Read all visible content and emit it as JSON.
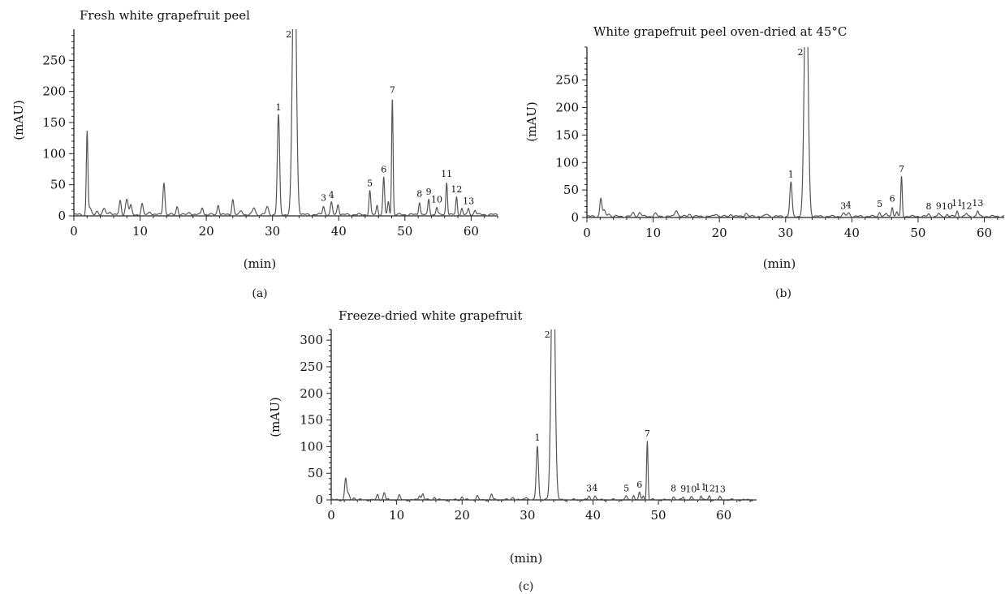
{
  "figure": {
    "panels": [
      {
        "panel_label": "(a)",
        "chart_data": {
          "type": "line",
          "title": "Fresh white grapefruit peel",
          "xlabel": "(min)",
          "ylabel": "(mAU)",
          "xlim": [
            0,
            64
          ],
          "ylim": [
            0,
            300
          ],
          "xticks": [
            0,
            10,
            20,
            30,
            40,
            50,
            60
          ],
          "yticks": [
            0,
            50,
            100,
            150,
            200,
            250
          ],
          "grid": false,
          "baseline": 2,
          "peaks": [
            {
              "x": 2.0,
              "y": 133,
              "w": 0.12,
              "label": ""
            },
            {
              "x": 2.4,
              "y": 10,
              "w": 0.2,
              "label": ""
            },
            {
              "x": 3.5,
              "y": 6,
              "w": 0.2,
              "label": ""
            },
            {
              "x": 4.6,
              "y": 9,
              "w": 0.2,
              "label": ""
            },
            {
              "x": 5.5,
              "y": 5,
              "w": 0.2,
              "label": ""
            },
            {
              "x": 7.0,
              "y": 22,
              "w": 0.15,
              "label": ""
            },
            {
              "x": 8.0,
              "y": 25,
              "w": 0.2,
              "label": ""
            },
            {
              "x": 8.6,
              "y": 14,
              "w": 0.15,
              "label": ""
            },
            {
              "x": 10.3,
              "y": 17,
              "w": 0.15,
              "label": ""
            },
            {
              "x": 11.5,
              "y": 5,
              "w": 0.2,
              "label": ""
            },
            {
              "x": 13.6,
              "y": 52,
              "w": 0.15,
              "label": ""
            },
            {
              "x": 15.6,
              "y": 13,
              "w": 0.15,
              "label": ""
            },
            {
              "x": 17.5,
              "y": 4,
              "w": 0.2,
              "label": ""
            },
            {
              "x": 19.4,
              "y": 12,
              "w": 0.15,
              "label": ""
            },
            {
              "x": 21.8,
              "y": 16,
              "w": 0.15,
              "label": ""
            },
            {
              "x": 24.0,
              "y": 25,
              "w": 0.15,
              "label": ""
            },
            {
              "x": 25.3,
              "y": 6,
              "w": 0.2,
              "label": ""
            },
            {
              "x": 27.2,
              "y": 11,
              "w": 0.2,
              "label": ""
            },
            {
              "x": 29.2,
              "y": 12,
              "w": 0.2,
              "label": ""
            },
            {
              "x": 30.9,
              "y": 160,
              "w": 0.17,
              "label": "1"
            },
            {
              "x": 33.3,
              "y": 470,
              "w": 0.28,
              "label": "2"
            },
            {
              "x": 37.7,
              "y": 14,
              "w": 0.15,
              "label": "3"
            },
            {
              "x": 38.9,
              "y": 19,
              "w": 0.15,
              "label": "4"
            },
            {
              "x": 39.9,
              "y": 17,
              "w": 0.15,
              "label": ""
            },
            {
              "x": 44.7,
              "y": 38,
              "w": 0.13,
              "label": "5"
            },
            {
              "x": 45.8,
              "y": 15,
              "w": 0.13,
              "label": ""
            },
            {
              "x": 46.8,
              "y": 60,
              "w": 0.13,
              "label": "6"
            },
            {
              "x": 47.5,
              "y": 20,
              "w": 0.12,
              "label": ""
            },
            {
              "x": 48.1,
              "y": 188,
              "w": 0.11,
              "label": "7"
            },
            {
              "x": 52.2,
              "y": 21,
              "w": 0.13,
              "label": "8"
            },
            {
              "x": 53.6,
              "y": 24,
              "w": 0.13,
              "label": "9"
            },
            {
              "x": 54.8,
              "y": 12,
              "w": 0.13,
              "label": "10"
            },
            {
              "x": 56.3,
              "y": 53,
              "w": 0.12,
              "label": "11"
            },
            {
              "x": 57.8,
              "y": 28,
              "w": 0.12,
              "label": "12"
            },
            {
              "x": 58.6,
              "y": 10,
              "w": 0.13,
              "label": ""
            },
            {
              "x": 59.6,
              "y": 9,
              "w": 0.13,
              "label": "13"
            },
            {
              "x": 60.6,
              "y": 8,
              "w": 0.15,
              "label": ""
            }
          ]
        }
      },
      {
        "panel_label": "(b)",
        "chart_data": {
          "type": "line",
          "title": "White grapefruit peel oven-dried at 45°C",
          "xlabel": "(min)",
          "ylabel": "(mAU)",
          "xlim": [
            0,
            63
          ],
          "ylim": [
            0,
            310
          ],
          "xticks": [
            0,
            10,
            20,
            30,
            40,
            50,
            60
          ],
          "yticks": [
            0,
            50,
            100,
            150,
            200,
            250
          ],
          "grid": false,
          "baseline": 2,
          "peaks": [
            {
              "x": 2.1,
              "y": 33,
              "w": 0.15,
              "label": ""
            },
            {
              "x": 2.6,
              "y": 10,
              "w": 0.2,
              "label": ""
            },
            {
              "x": 3.3,
              "y": 5,
              "w": 0.2,
              "label": ""
            },
            {
              "x": 7.0,
              "y": 6,
              "w": 0.2,
              "label": ""
            },
            {
              "x": 8.0,
              "y": 7,
              "w": 0.2,
              "label": ""
            },
            {
              "x": 10.3,
              "y": 5,
              "w": 0.2,
              "label": ""
            },
            {
              "x": 13.5,
              "y": 12,
              "w": 0.2,
              "label": ""
            },
            {
              "x": 15.5,
              "y": 4,
              "w": 0.2,
              "label": ""
            },
            {
              "x": 19.5,
              "y": 5,
              "w": 0.2,
              "label": ""
            },
            {
              "x": 21.8,
              "y": 4,
              "w": 0.2,
              "label": ""
            },
            {
              "x": 24.0,
              "y": 6,
              "w": 0.2,
              "label": ""
            },
            {
              "x": 27.2,
              "y": 4,
              "w": 0.2,
              "label": ""
            },
            {
              "x": 30.8,
              "y": 62,
              "w": 0.17,
              "label": "1"
            },
            {
              "x": 33.1,
              "y": 470,
              "w": 0.28,
              "label": "2"
            },
            {
              "x": 38.7,
              "y": 5,
              "w": 0.2,
              "label": "3"
            },
            {
              "x": 39.5,
              "y": 6,
              "w": 0.2,
              "label": "4"
            },
            {
              "x": 44.2,
              "y": 8,
              "w": 0.15,
              "label": "5"
            },
            {
              "x": 45.2,
              "y": 5,
              "w": 0.15,
              "label": ""
            },
            {
              "x": 46.1,
              "y": 18,
              "w": 0.13,
              "label": "6"
            },
            {
              "x": 46.8,
              "y": 8,
              "w": 0.13,
              "label": ""
            },
            {
              "x": 47.5,
              "y": 72,
              "w": 0.11,
              "label": "7"
            },
            {
              "x": 51.6,
              "y": 4,
              "w": 0.15,
              "label": "8"
            },
            {
              "x": 53.1,
              "y": 5,
              "w": 0.15,
              "label": "9"
            },
            {
              "x": 54.4,
              "y": 4,
              "w": 0.15,
              "label": "10"
            },
            {
              "x": 55.9,
              "y": 10,
              "w": 0.13,
              "label": "11"
            },
            {
              "x": 57.3,
              "y": 5,
              "w": 0.15,
              "label": "12"
            },
            {
              "x": 59.0,
              "y": 10,
              "w": 0.15,
              "label": "13"
            }
          ]
        }
      },
      {
        "panel_label": "(c)",
        "chart_data": {
          "type": "line",
          "title": "Freeze-dried white grapefruit",
          "xlabel": "(min)",
          "ylabel": "(mAU)",
          "xlim": [
            0,
            65
          ],
          "ylim": [
            0,
            320
          ],
          "xticks": [
            0,
            10,
            20,
            30,
            40,
            50,
            60
          ],
          "yticks": [
            0,
            50,
            100,
            150,
            200,
            250,
            300
          ],
          "grid": false,
          "baseline": 0,
          "peaks": [
            {
              "x": 2.2,
              "y": 40,
              "w": 0.15,
              "label": ""
            },
            {
              "x": 2.6,
              "y": 10,
              "w": 0.2,
              "label": ""
            },
            {
              "x": 3.5,
              "y": 4,
              "w": 0.2,
              "label": ""
            },
            {
              "x": 7.1,
              "y": 10,
              "w": 0.15,
              "label": ""
            },
            {
              "x": 8.1,
              "y": 14,
              "w": 0.15,
              "label": ""
            },
            {
              "x": 10.4,
              "y": 8,
              "w": 0.15,
              "label": ""
            },
            {
              "x": 13.5,
              "y": 9,
              "w": 0.15,
              "label": ""
            },
            {
              "x": 14.0,
              "y": 12,
              "w": 0.15,
              "label": ""
            },
            {
              "x": 15.8,
              "y": 6,
              "w": 0.15,
              "label": ""
            },
            {
              "x": 20.0,
              "y": 6,
              "w": 0.15,
              "label": ""
            },
            {
              "x": 22.3,
              "y": 8,
              "w": 0.15,
              "label": ""
            },
            {
              "x": 24.5,
              "y": 11,
              "w": 0.15,
              "label": ""
            },
            {
              "x": 27.8,
              "y": 5,
              "w": 0.2,
              "label": ""
            },
            {
              "x": 29.8,
              "y": 6,
              "w": 0.2,
              "label": ""
            },
            {
              "x": 31.5,
              "y": 102,
              "w": 0.17,
              "label": "1"
            },
            {
              "x": 33.9,
              "y": 520,
              "w": 0.28,
              "label": "2"
            },
            {
              "x": 39.4,
              "y": 7,
              "w": 0.15,
              "label": "3"
            },
            {
              "x": 40.3,
              "y": 8,
              "w": 0.15,
              "label": "4"
            },
            {
              "x": 45.1,
              "y": 7,
              "w": 0.15,
              "label": "5"
            },
            {
              "x": 46.2,
              "y": 10,
              "w": 0.13,
              "label": ""
            },
            {
              "x": 47.1,
              "y": 14,
              "w": 0.13,
              "label": "6"
            },
            {
              "x": 47.7,
              "y": 8,
              "w": 0.12,
              "label": ""
            },
            {
              "x": 48.3,
              "y": 110,
              "w": 0.11,
              "label": "7"
            },
            {
              "x": 52.3,
              "y": 7,
              "w": 0.15,
              "label": "8"
            },
            {
              "x": 53.8,
              "y": 6,
              "w": 0.15,
              "label": "9"
            },
            {
              "x": 55.0,
              "y": 5,
              "w": 0.15,
              "label": "10"
            },
            {
              "x": 56.5,
              "y": 9,
              "w": 0.13,
              "label": "11"
            },
            {
              "x": 57.8,
              "y": 7,
              "w": 0.13,
              "label": "12"
            },
            {
              "x": 59.4,
              "y": 5,
              "w": 0.15,
              "label": "13"
            }
          ]
        }
      }
    ]
  }
}
